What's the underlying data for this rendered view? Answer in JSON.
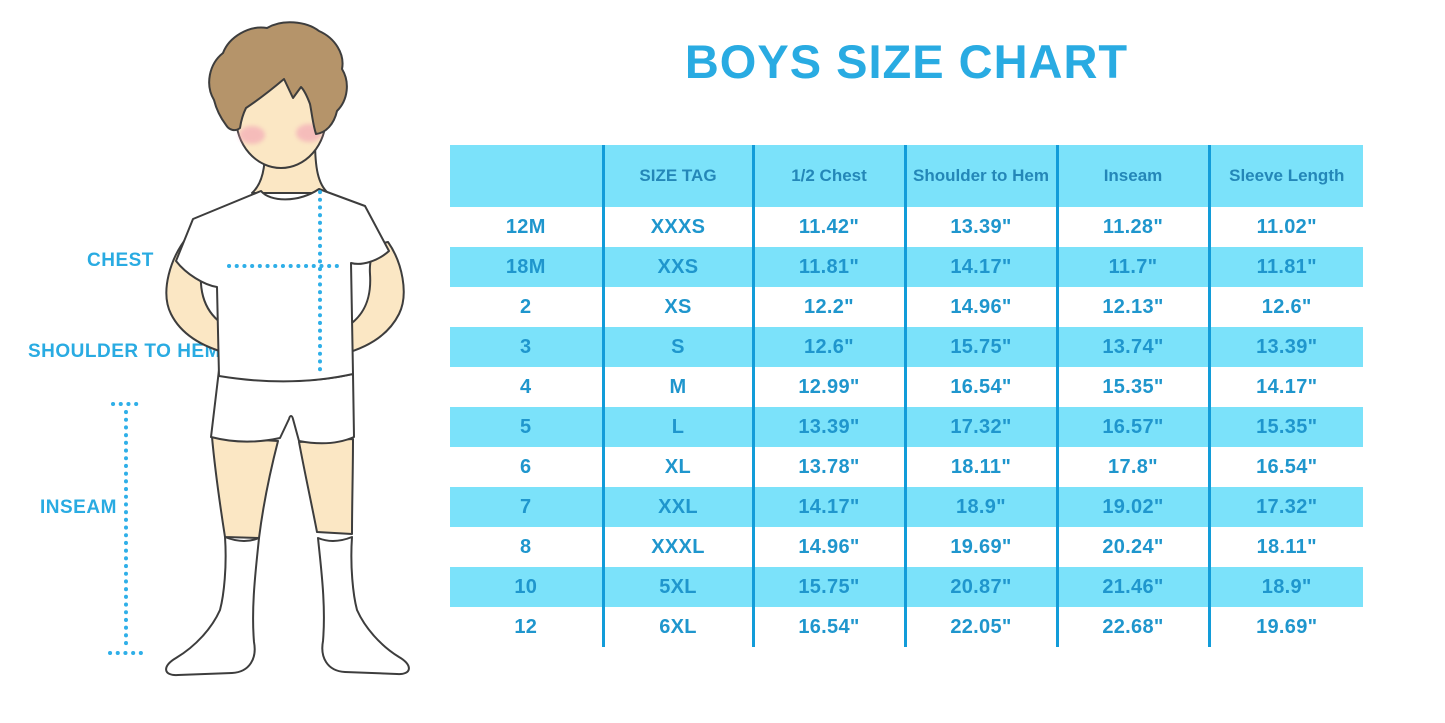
{
  "title": "BOYS SIZE CHART",
  "measurement_labels": {
    "chest": "CHEST",
    "shoulder_to_hem": "SHOULDER TO HEM",
    "inseam": "INSEAM"
  },
  "chart_data": {
    "type": "table",
    "title": "BOYS SIZE CHART",
    "columns": [
      "",
      "SIZE TAG",
      "1/2 Chest",
      "Shoulder to Hem",
      "Inseam",
      "Sleeve Length"
    ],
    "rows": [
      [
        "12M",
        "XXXS",
        "11.42\"",
        "13.39\"",
        "11.28\"",
        "11.02\""
      ],
      [
        "18M",
        "XXS",
        "11.81\"",
        "14.17\"",
        "11.7\"",
        "11.81\""
      ],
      [
        "2",
        "XS",
        "12.2\"",
        "14.96\"",
        "12.13\"",
        "12.6\""
      ],
      [
        "3",
        "S",
        "12.6\"",
        "15.75\"",
        "13.74\"",
        "13.39\""
      ],
      [
        "4",
        "M",
        "12.99\"",
        "16.54\"",
        "15.35\"",
        "14.17\""
      ],
      [
        "5",
        "L",
        "13.39\"",
        "17.32\"",
        "16.57\"",
        "15.35\""
      ],
      [
        "6",
        "XL",
        "13.78\"",
        "18.11\"",
        "17.8\"",
        "16.54\""
      ],
      [
        "7",
        "XXL",
        "14.17\"",
        "18.9\"",
        "19.02\"",
        "17.32\""
      ],
      [
        "8",
        "XXXL",
        "14.96\"",
        "19.69\"",
        "20.24\"",
        "18.11\""
      ],
      [
        "10",
        "5XL",
        "15.75\"",
        "20.87\"",
        "21.46\"",
        "18.9\""
      ],
      [
        "12",
        "6XL",
        "16.54\"",
        "22.05\"",
        "22.68\"",
        "19.69\""
      ]
    ],
    "layout": {
      "striped": true,
      "stripe_colors": [
        "#FFFFFF",
        "#7BE2FA"
      ],
      "header_background": "#7BE2FA",
      "grid": "vertical-dividers-only",
      "legend": "none"
    }
  },
  "colors": {
    "title_blue": "#29ABE2",
    "table_cyan": "#7BE2FA",
    "divider_blue": "#129CD9",
    "cell_text": "#1F96CD",
    "header_text": "#2487B8",
    "dotted_line": "#2FAFE8",
    "skin": "#FBE7C4",
    "hair": "#B5946A"
  }
}
